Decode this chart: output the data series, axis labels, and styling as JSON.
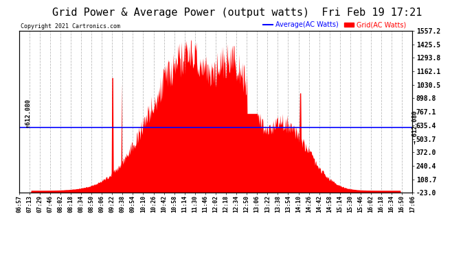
{
  "title": "Grid Power & Average Power (output watts)  Fri Feb 19 17:21",
  "copyright": "Copyright 2021 Cartronics.com",
  "legend_avg": "Average(AC Watts)",
  "legend_grid": "Grid(AC Watts)",
  "legend_avg_color": "blue",
  "legend_grid_color": "red",
  "yticks_right": [
    1557.2,
    1425.5,
    1293.8,
    1162.1,
    1030.5,
    898.8,
    767.1,
    635.4,
    503.7,
    372.0,
    240.4,
    108.7,
    -23.0
  ],
  "ymin": -23.0,
  "ymax": 1557.2,
  "avg_line_value": 612.08,
  "avg_line_color": "blue",
  "fill_color": "red",
  "background_color": "white",
  "grid_color": "#bbbbbb",
  "title_fontsize": 11,
  "label_fontsize": 7,
  "xtick_labels": [
    "06:57",
    "07:13",
    "07:29",
    "07:46",
    "08:02",
    "08:18",
    "08:34",
    "08:50",
    "09:06",
    "09:22",
    "09:38",
    "09:54",
    "10:10",
    "10:26",
    "10:42",
    "10:58",
    "11:14",
    "11:30",
    "11:46",
    "12:02",
    "12:18",
    "12:34",
    "12:50",
    "13:06",
    "13:22",
    "13:38",
    "13:54",
    "14:10",
    "14:26",
    "14:42",
    "14:58",
    "15:14",
    "15:30",
    "15:46",
    "16:02",
    "16:18",
    "16:34",
    "16:50",
    "17:06"
  ],
  "n_points": 780
}
